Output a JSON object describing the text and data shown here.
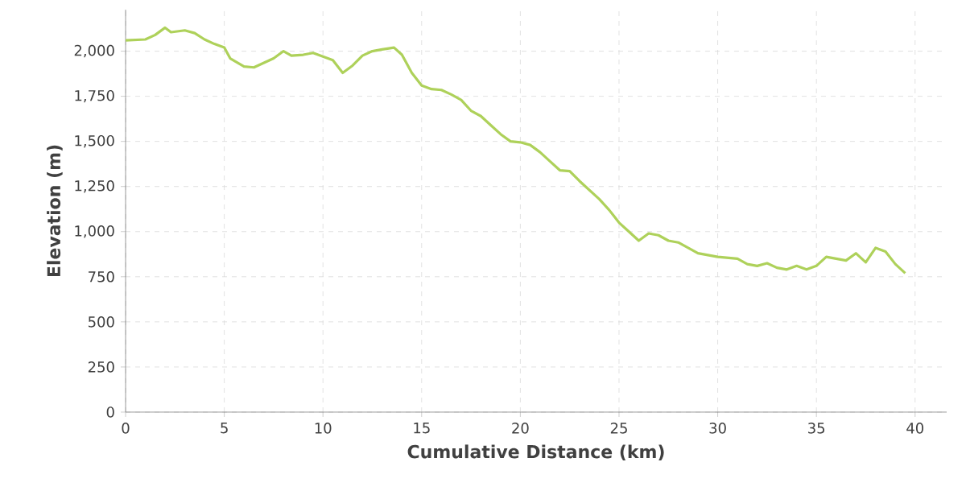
{
  "chart_data": {
    "type": "line",
    "xlabel": "Cumulative Distance (km)",
    "ylabel": "Elevation (m)",
    "x": [
      0,
      1,
      1.5,
      2,
      2.3,
      3,
      3.5,
      4,
      4.5,
      5,
      5.3,
      6,
      6.5,
      7,
      7.5,
      8,
      8.4,
      9,
      9.5,
      10,
      10.5,
      11,
      11.5,
      12,
      12.5,
      13,
      13.6,
      14,
      14.5,
      15,
      15.5,
      16,
      16.5,
      17,
      17.5,
      18,
      18.5,
      19,
      19.5,
      20,
      20.5,
      21,
      21.5,
      22,
      22.5,
      23,
      23.5,
      24,
      24.5,
      25,
      25.5,
      26,
      26.5,
      27,
      27.5,
      28,
      29,
      30,
      31,
      31.5,
      32,
      32.5,
      33,
      33.5,
      34,
      34.5,
      35,
      35.5,
      36,
      36.5,
      37,
      37.5,
      38,
      38.5,
      39,
      39.5
    ],
    "series": [
      {
        "color": "#aed15a",
        "values": [
          2060,
          2065,
          2090,
          2130,
          2105,
          2115,
          2100,
          2065,
          2040,
          2020,
          1960,
          1915,
          1910,
          1935,
          1960,
          2000,
          1975,
          1980,
          1990,
          1970,
          1950,
          1880,
          1920,
          1975,
          2000,
          2010,
          2020,
          1980,
          1880,
          1810,
          1790,
          1785,
          1760,
          1730,
          1670,
          1640,
          1590,
          1540,
          1500,
          1495,
          1480,
          1440,
          1390,
          1340,
          1335,
          1280,
          1230,
          1180,
          1120,
          1050,
          1000,
          950,
          990,
          980,
          950,
          940,
          880,
          860,
          850,
          820,
          810,
          825,
          800,
          790,
          810,
          790,
          810,
          860,
          850,
          840,
          880,
          830,
          910,
          890,
          820,
          770
        ]
      }
    ],
    "xlim": [
      0,
      41.6
    ],
    "ylim": [
      0,
      2230
    ],
    "xticks": [
      0,
      5,
      10,
      15,
      20,
      25,
      30,
      35,
      40
    ],
    "yticks": [
      0,
      250,
      500,
      750,
      {
        "value": 1000,
        "label": "1,000"
      },
      {
        "value": 1250,
        "label": "1,250"
      },
      {
        "value": 1500,
        "label": "1,500"
      },
      {
        "value": 1750,
        "label": "1,750"
      },
      {
        "value": 2000,
        "label": "2,000"
      }
    ],
    "grid": true,
    "marker": "none",
    "line_style": "solid"
  }
}
